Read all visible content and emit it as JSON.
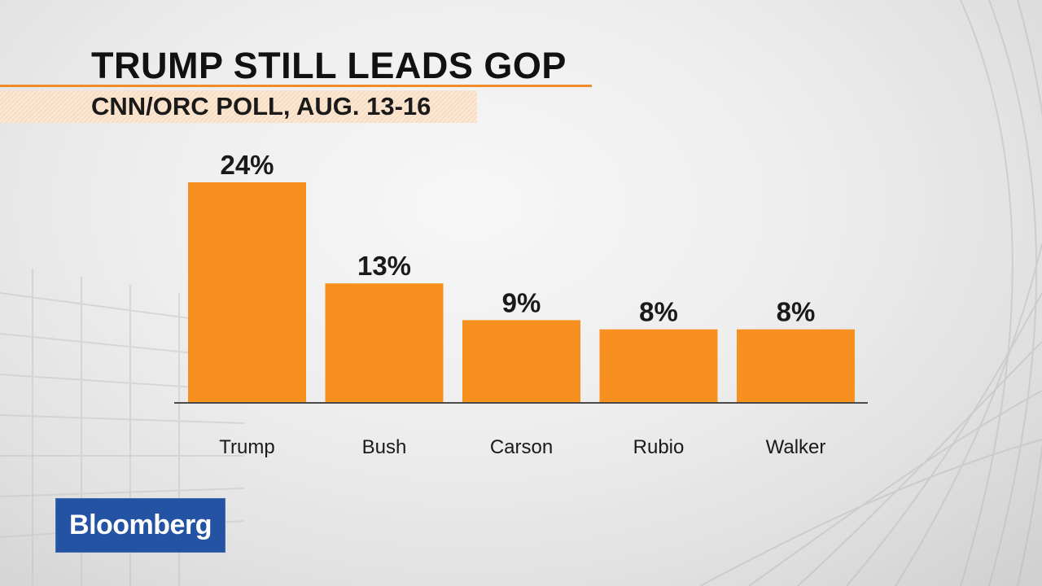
{
  "header": {
    "title": "TRUMP STILL LEADS GOP",
    "subtitle": "CNN/ORC POLL, AUG. 13-16"
  },
  "branding": {
    "logo_text": "Bloomberg",
    "logo_color": "#2453a3"
  },
  "colors": {
    "bar": "#f7901e",
    "accent": "#f28c28"
  },
  "chart_data": {
    "type": "bar",
    "title": "TRUMP STILL LEADS GOP",
    "subtitle": "CNN/ORC POLL, AUG. 13-16",
    "categories": [
      "Trump",
      "Bush",
      "Carson",
      "Rubio",
      "Walker"
    ],
    "values": [
      24,
      13,
      9,
      8,
      8
    ],
    "value_labels": [
      "24%",
      "13%",
      "9%",
      "8%",
      "8%"
    ],
    "xlabel": "",
    "ylabel": "",
    "ylim": [
      0,
      24
    ],
    "grid": false,
    "legend": "none"
  }
}
